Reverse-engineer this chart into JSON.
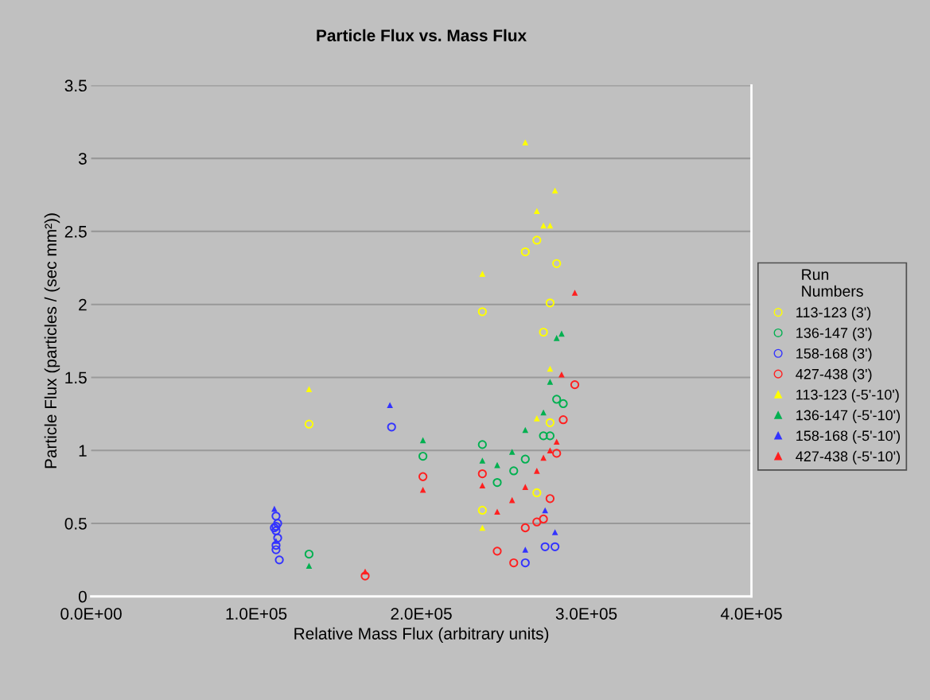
{
  "chart_data": {
    "type": "scatter",
    "title": "Particle Flux vs. Mass Flux",
    "xlabel": "Relative Mass Flux (arbitrary units)",
    "ylabel": "Particle Flux (particles / (sec mm²))",
    "legend_title": "Run\nNumbers",
    "legend": "right",
    "grid": "y",
    "xlim": [
      0,
      400000
    ],
    "xticks": [
      {
        "value": 0,
        "label": "0.0E+00"
      },
      {
        "value": 100000,
        "label": "1.0E+05"
      },
      {
        "value": 200000,
        "label": "2.0E+05"
      },
      {
        "value": 300000,
        "label": "3.0E+05"
      },
      {
        "value": 400000,
        "label": "4.0E+05"
      }
    ],
    "ylim": [
      0,
      3.5
    ],
    "yticks": [
      0,
      0.5,
      1,
      1.5,
      2,
      2.5,
      3,
      3.5
    ],
    "series": [
      {
        "name": "113-123 (3')",
        "color": "#ffff00",
        "marker": "circle",
        "x": [
          132000,
          237000,
          263000,
          270000,
          282000,
          278000,
          274000,
          278000,
          270000,
          237000
        ],
        "values": [
          1.18,
          1.95,
          2.36,
          2.44,
          2.28,
          2.01,
          1.81,
          1.19,
          0.71,
          0.59
        ]
      },
      {
        "name": "136-147 (3')",
        "color": "#00b050",
        "marker": "circle",
        "x": [
          132000,
          201000,
          237000,
          263000,
          256000,
          246000,
          274000,
          278000,
          282000,
          286000
        ],
        "values": [
          0.29,
          0.96,
          1.04,
          0.94,
          0.86,
          0.78,
          1.1,
          1.1,
          1.35,
          1.32
        ]
      },
      {
        "name": "158-168 (3')",
        "color": "#3333ff",
        "marker": "circle",
        "x": [
          112000,
          113000,
          112000,
          111000,
          112000,
          113000,
          112000,
          112000,
          114000,
          182000,
          275000,
          281000,
          263000
        ],
        "values": [
          0.55,
          0.5,
          0.48,
          0.47,
          0.45,
          0.4,
          0.35,
          0.32,
          0.25,
          1.16,
          0.34,
          0.34,
          0.23
        ]
      },
      {
        "name": "427-438 (3')",
        "color": "#ff2020",
        "marker": "circle",
        "x": [
          166000,
          201000,
          293000,
          286000,
          282000,
          237000,
          278000,
          270000,
          274000,
          263000,
          246000,
          256000
        ],
        "values": [
          0.14,
          0.82,
          1.45,
          1.21,
          0.98,
          0.84,
          0.67,
          0.51,
          0.53,
          0.47,
          0.31,
          0.23
        ]
      },
      {
        "name": "113-123 (-5'-10')",
        "color": "#ffff00",
        "marker": "triangle",
        "x": [
          132000,
          237000,
          263000,
          270000,
          281000,
          274000,
          278000,
          278000,
          270000,
          237000
        ],
        "values": [
          1.42,
          2.21,
          3.11,
          2.64,
          2.78,
          2.54,
          2.54,
          1.56,
          1.22,
          0.47
        ]
      },
      {
        "name": "136-147 (-5'-10')",
        "color": "#00b050",
        "marker": "triangle",
        "x": [
          132000,
          201000,
          237000,
          246000,
          255000,
          263000,
          274000,
          278000,
          282000,
          285000
        ],
        "values": [
          0.21,
          1.07,
          0.93,
          0.9,
          0.99,
          1.14,
          1.26,
          1.47,
          1.77,
          1.8
        ]
      },
      {
        "name": "158-168 (-5'-10')",
        "color": "#3333ff",
        "marker": "triangle",
        "x": [
          111000,
          112000,
          181000,
          275000,
          281000,
          263000
        ],
        "values": [
          0.6,
          0.38,
          1.31,
          0.59,
          0.44,
          0.32
        ]
      },
      {
        "name": "427-438 (-5'-10')",
        "color": "#ff2020",
        "marker": "triangle",
        "x": [
          166000,
          201000,
          293000,
          285000,
          282000,
          278000,
          274000,
          270000,
          263000,
          255000,
          237000,
          246000
        ],
        "values": [
          0.17,
          0.73,
          2.08,
          1.52,
          1.06,
          1.0,
          0.95,
          0.86,
          0.75,
          0.66,
          0.76,
          0.58
        ]
      }
    ]
  }
}
